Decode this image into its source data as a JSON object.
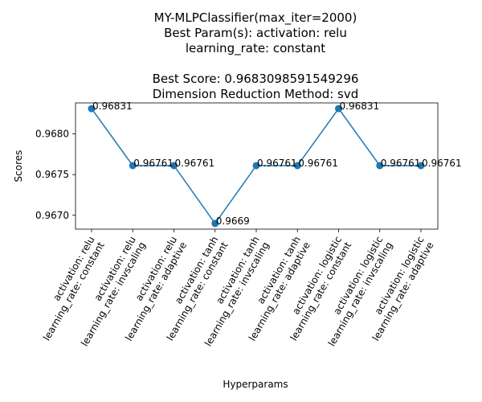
{
  "chart_data": {
    "type": "line",
    "title_lines": [
      "MY-MLPClassifier(max_iter=2000)",
      "Best Param(s): activation: relu",
      "learning_rate: constant",
      "",
      "Best Score: 0.9683098591549296",
      "Dimension Reduction Method: svd"
    ],
    "xlabel": "Hyperparams",
    "ylabel": "Scores",
    "categories": [
      [
        "activation: relu",
        "learning_rate: constant"
      ],
      [
        "activation: relu",
        "learning_rate: invscaling"
      ],
      [
        "activation: relu",
        "learning_rate: adaptive"
      ],
      [
        "activation: tanh",
        "learning_rate: constant"
      ],
      [
        "activation: tanh",
        "learning_rate: invscaling"
      ],
      [
        "activation: tanh",
        "learning_rate: adaptive"
      ],
      [
        "activation: logistic",
        "learning_rate: constant"
      ],
      [
        "activation: logistic",
        "learning_rate: invscaling"
      ],
      [
        "activation: logistic",
        "learning_rate: adaptive"
      ]
    ],
    "values": [
      0.96831,
      0.96761,
      0.96761,
      0.9669,
      0.96761,
      0.96761,
      0.96831,
      0.96761,
      0.96761
    ],
    "value_labels": [
      "0.96831",
      "0.96761",
      "0.96761",
      "0.9669",
      "0.96761",
      "0.96761",
      "0.96831",
      "0.96761",
      "0.96761"
    ],
    "yticks": [
      "0.9670",
      "0.9675",
      "0.9680"
    ],
    "ytick_values": [
      0.967,
      0.9675,
      0.968
    ],
    "ylim": [
      0.96683,
      0.96838
    ],
    "line_color": "#1f77b4",
    "grid": false,
    "legend": "none"
  }
}
